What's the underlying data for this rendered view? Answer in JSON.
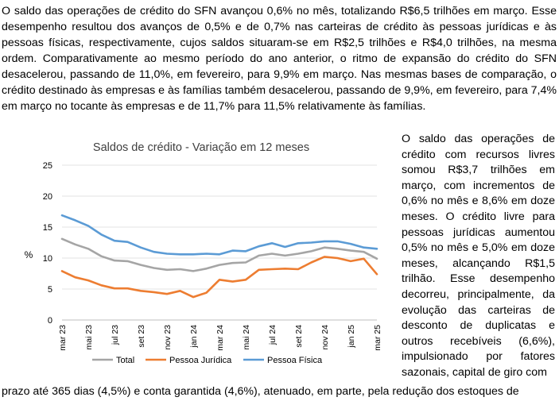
{
  "paragraph_top": "O saldo das operações de crédito do SFN avançou 0,6% no mês, totalizando R$6,5 trilhões em março. Esse desempenho resultou dos avanços de 0,5% e de 0,7% nas carteiras de crédito às pessoas jurídicas e às pessoas físicas, respectivamente, cujos saldos situaram-se em R$2,5 trilhões e R$4,0 trilhões, na mesma ordem. Comparativamente ao mesmo período do ano anterior, o ritmo de expansão do crédito do SFN desacelerou, passando de 11,0%, em fevereiro, para 9,9% em março. Nas mesmas bases de comparação, o crédito destinado às empresas e às famílias também desacelerou, passando de 9,9%, em fevereiro, para 7,4% em março no tocante às empresas e de 11,7% para 11,5% relativamente às famílias.",
  "paragraph_side": "O saldo das operações de crédito com recursos livres somou R$3,7 trilhões em março, com incrementos de 0,6% no mês e 8,6% em doze meses. O crédito livre para pessoas jurídicas aumentou 0,5% no mês e 5,0% em doze meses, alcançando R$1,5 trilhão. Esse desempenho decorreu, principalmente, da evolução das carteiras de desconto de duplicatas e outros recebíveis (6,6%), impulsionado por fatores sazonais, capital de giro com",
  "paragraph_bottom": "prazo até 365 dias (4,5%) e conta garantida (4,6%), atenuado, em parte, pela redução dos estoques de",
  "chart_data": {
    "type": "line",
    "title": "Saldos de crédito - Variação em 12 meses",
    "xlabel": "",
    "ylabel": "%",
    "ylim": [
      0,
      25
    ],
    "yticks": [
      "0",
      "5",
      "10",
      "15",
      "20",
      "25"
    ],
    "categories": [
      "mar 23",
      "abr 23",
      "mai 23",
      "jun 23",
      "jul 23",
      "ago 23",
      "set 23",
      "out 23",
      "nov 23",
      "dez 23",
      "jan 24",
      "fev 24",
      "mar 24",
      "abr 24",
      "mai 24",
      "jun 24",
      "jul 24",
      "ago 24",
      "set 24",
      "out 24",
      "nov 24",
      "dez 24",
      "jan 25",
      "fev 25",
      "mar 25"
    ],
    "tick_labels": [
      "mar 23",
      "mai 23",
      "jul 23",
      "set 23",
      "nov 23",
      "jan 24",
      "mar 24",
      "mai 24",
      "jul 24",
      "set 24",
      "nov 24",
      "jan 25",
      "mar 25"
    ],
    "series": [
      {
        "name": "Total",
        "color": "#A5A5A5",
        "values": [
          13.1,
          12.2,
          11.5,
          10.3,
          9.6,
          9.5,
          8.9,
          8.4,
          8.1,
          8.2,
          7.9,
          8.3,
          8.9,
          9.2,
          9.3,
          10.4,
          10.7,
          10.4,
          10.7,
          11.1,
          11.7,
          11.5,
          11.2,
          11.0,
          9.9
        ]
      },
      {
        "name": "Pessoa Jurídica",
        "color": "#ED7D31",
        "values": [
          7.9,
          6.9,
          6.4,
          5.6,
          5.1,
          5.1,
          4.7,
          4.5,
          4.2,
          4.7,
          3.7,
          4.4,
          6.5,
          6.2,
          6.5,
          8.1,
          8.2,
          8.3,
          8.2,
          9.3,
          10.2,
          10.0,
          9.5,
          9.9,
          7.4
        ]
      },
      {
        "name": "Pessoa Física",
        "color": "#5B9BD5",
        "values": [
          16.9,
          16.1,
          15.2,
          13.8,
          12.8,
          12.6,
          11.7,
          11.0,
          10.7,
          10.6,
          10.6,
          10.7,
          10.6,
          11.2,
          11.1,
          11.9,
          12.4,
          11.8,
          12.4,
          12.5,
          12.7,
          12.7,
          12.3,
          11.7,
          11.5
        ]
      }
    ]
  }
}
